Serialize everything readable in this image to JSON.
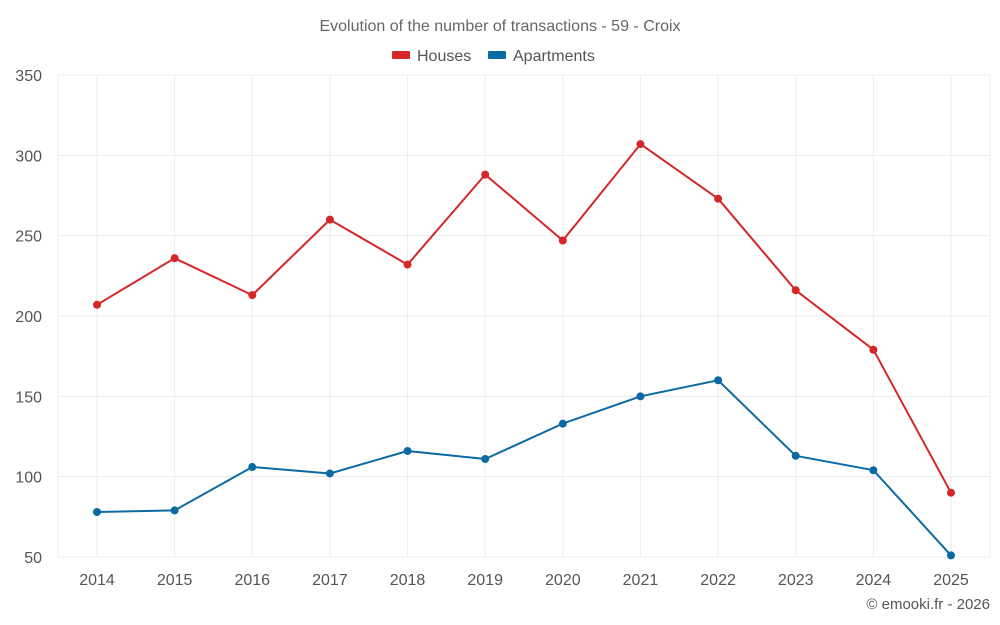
{
  "chart_data": {
    "type": "line",
    "title": "Evolution of the number of transactions - 59 - Croix",
    "categories": [
      "2014",
      "2015",
      "2016",
      "2017",
      "2018",
      "2019",
      "2020",
      "2021",
      "2022",
      "2023",
      "2024",
      "2025"
    ],
    "series": [
      {
        "name": "Houses",
        "color": "#d62728",
        "values": [
          207,
          236,
          213,
          260,
          232,
          288,
          247,
          307,
          273,
          216,
          179,
          90
        ]
      },
      {
        "name": "Apartments",
        "color": "#0b6aa2",
        "values": [
          78,
          79,
          106,
          102,
          116,
          111,
          133,
          150,
          160,
          113,
          104,
          51
        ]
      }
    ],
    "ylim": [
      50,
      350
    ],
    "yticks": [
      50,
      100,
      150,
      200,
      250,
      300,
      350
    ],
    "ytick_labels": [
      "50",
      "100",
      "150",
      "200",
      "250",
      "300",
      "350"
    ],
    "grid": true,
    "legend_position": "top-center"
  },
  "credit": "© emooki.fr - 2026"
}
